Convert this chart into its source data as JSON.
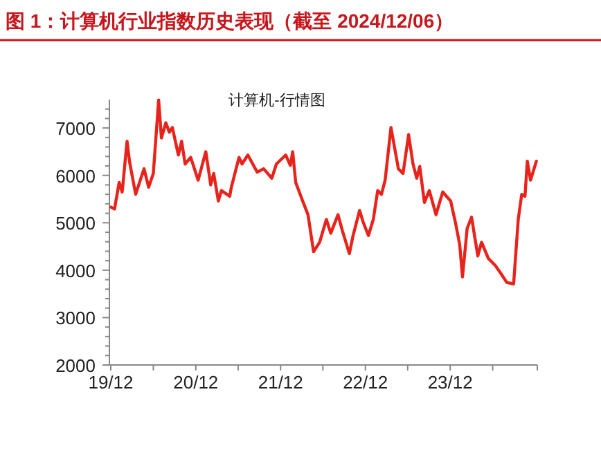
{
  "chart_data": {
    "type": "line",
    "title": "图 1：计算机行业指数历史表现（截至 2024/12/06）",
    "subtitle": "计算机-行情图",
    "x": [
      "2019-12-02",
      "2019-12-17",
      "2020-01-06",
      "2020-01-19",
      "2020-02-09",
      "2020-02-20",
      "2020-03-17",
      "2020-04-22",
      "2020-05-12",
      "2020-06-01",
      "2020-06-24",
      "2020-07-06",
      "2020-07-25",
      "2020-08-09",
      "2020-08-22",
      "2020-09-17",
      "2020-10-01",
      "2020-10-16",
      "2020-11-09",
      "2020-12-11",
      "2021-01-13",
      "2021-02-03",
      "2021-02-16",
      "2021-03-08",
      "2021-03-21",
      "2021-04-26",
      "2021-05-03",
      "2021-06-05",
      "2021-06-18",
      "2021-07-13",
      "2021-08-22",
      "2021-09-19",
      "2021-10-24",
      "2021-11-13",
      "2021-12-23",
      "2022-01-12",
      "2022-01-22",
      "2022-02-04",
      "2022-03-10",
      "2022-03-29",
      "2022-04-22",
      "2022-05-18",
      "2022-06-16",
      "2022-07-05",
      "2022-08-05",
      "2022-08-24",
      "2022-09-23",
      "2022-10-09",
      "2022-11-06",
      "2022-11-21",
      "2022-12-14",
      "2023-01-04",
      "2023-01-23",
      "2023-02-08",
      "2023-02-24",
      "2023-03-21",
      "2023-04-22",
      "2023-05-12",
      "2023-06-05",
      "2023-06-24",
      "2023-07-10",
      "2023-07-23",
      "2023-08-12",
      "2023-09-02",
      "2023-10-01",
      "2023-10-30",
      "2023-12-03",
      "2023-12-23",
      "2024-01-11",
      "2024-01-23",
      "2024-02-12",
      "2024-03-02",
      "2024-03-29",
      "2024-04-14",
      "2024-05-13",
      "2024-06-12",
      "2024-07-02",
      "2024-08-01",
      "2024-08-30",
      "2024-09-19",
      "2024-10-04",
      "2024-10-18",
      "2024-10-28",
      "2024-11-11",
      "2024-12-06"
    ],
    "series": [
      {
        "color": "#e8231c",
        "values": [
          5330,
          5290,
          5850,
          5650,
          6720,
          6280,
          5600,
          6140,
          5750,
          6040,
          7590,
          6790,
          7110,
          6910,
          7010,
          6430,
          6720,
          6240,
          6380,
          5900,
          6500,
          5800,
          6040,
          5460,
          5680,
          5560,
          5750,
          6380,
          6240,
          6430,
          6070,
          6140,
          5940,
          6240,
          6430,
          6210,
          6500,
          5850,
          5410,
          5170,
          4390,
          4590,
          5070,
          4780,
          5170,
          4830,
          4350,
          4730,
          5260,
          5020,
          4730,
          5070,
          5680,
          5600,
          5900,
          7010,
          6140,
          6040,
          6860,
          6240,
          5940,
          6190,
          5430,
          5680,
          5170,
          5650,
          5460,
          5020,
          4540,
          3860,
          4880,
          5120,
          4300,
          4590,
          4250,
          4100,
          3960,
          3740,
          3710,
          5070,
          5600,
          5560,
          6300,
          5900,
          6300
        ]
      }
    ],
    "xlim": [
      "2019-11-25",
      "2024-12-10"
    ],
    "xticks": [
      {
        "value": "2019-12-01",
        "label": "19/12"
      },
      {
        "value": "2020-06-01",
        "label": null
      },
      {
        "value": "2020-12-01",
        "label": "20/12"
      },
      {
        "value": "2021-06-01",
        "label": null
      },
      {
        "value": "2021-12-01",
        "label": "21/12"
      },
      {
        "value": "2022-06-01",
        "label": null
      },
      {
        "value": "2022-12-01",
        "label": "22/12"
      },
      {
        "value": "2023-06-01",
        "label": null
      },
      {
        "value": "2023-12-01",
        "label": "23/12"
      },
      {
        "value": "2024-06-01",
        "label": null
      }
    ],
    "ylim": [
      2000,
      7600
    ],
    "yticks": [
      2000,
      {
        "value": 2200,
        "label": null
      },
      {
        "value": 2400,
        "label": null
      },
      {
        "value": 2600,
        "label": null
      },
      {
        "value": 2800,
        "label": null
      },
      3000,
      {
        "value": 3200,
        "label": null
      },
      {
        "value": 3400,
        "label": null
      },
      {
        "value": 3600,
        "label": null
      },
      {
        "value": 3800,
        "label": null
      },
      4000,
      {
        "value": 4200,
        "label": null
      },
      {
        "value": 4400,
        "label": null
      },
      {
        "value": 4600,
        "label": null
      },
      {
        "value": 4800,
        "label": null
      },
      5000,
      {
        "value": 5200,
        "label": null
      },
      {
        "value": 5400,
        "label": null
      },
      {
        "value": 5600,
        "label": null
      },
      {
        "value": 5800,
        "label": null
      },
      6000,
      {
        "value": 6200,
        "label": null
      },
      {
        "value": 6400,
        "label": null
      },
      {
        "value": 6600,
        "label": null
      },
      {
        "value": 6800,
        "label": null
      },
      7000,
      {
        "value": 7200,
        "label": null
      },
      {
        "value": 7400,
        "label": null
      }
    ],
    "grid": false,
    "marker": "none",
    "line_style": "solid"
  }
}
